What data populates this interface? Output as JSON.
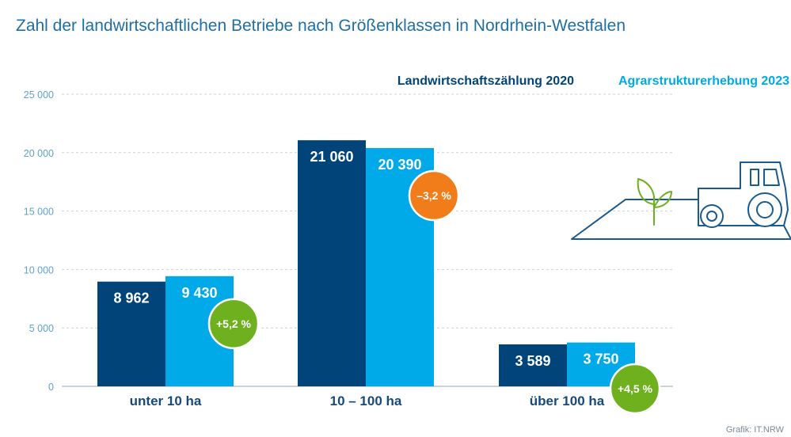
{
  "title": "Zahl der landwirtschaftlichen Betriebe nach Größenklassen in Nordrhein-Westfalen",
  "source": "Grafik: IT.NRW",
  "illustration_icon": "tractor-field-icon",
  "chart_data": {
    "type": "bar",
    "categories": [
      "unter 10 ha",
      "10 – 100 ha",
      "über 100 ha"
    ],
    "series": [
      {
        "name": "Landwirtschaftszählung 2020",
        "color": "#004479",
        "values": [
          8962,
          21060,
          3589
        ],
        "labels": [
          "8 962",
          "21 060",
          "3 589"
        ]
      },
      {
        "name": "Agrarstrukturerhebung 2023",
        "color": "#00a9e8",
        "values": [
          9430,
          20390,
          3750
        ],
        "labels": [
          "9 430",
          "20 390",
          "3 750"
        ]
      }
    ],
    "changes": [
      {
        "label": "+5,2 %",
        "color": "#6fb01e"
      },
      {
        "label": "–3,2 %",
        "color": "#f07d1a"
      },
      {
        "label": "+4,5 %",
        "color": "#6fb01e"
      }
    ],
    "ylim": [
      0,
      25000
    ],
    "yticks": [
      0,
      5000,
      10000,
      15000,
      20000,
      25000
    ],
    "ytick_labels": [
      "0",
      "5 000",
      "10 000",
      "15 000",
      "20 000",
      "25 000"
    ],
    "grid": true,
    "legend_position": "top-right",
    "xlabel": "",
    "ylabel": ""
  }
}
